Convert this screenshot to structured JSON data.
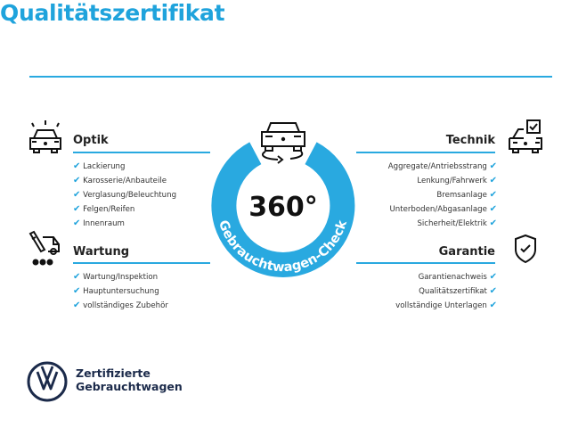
{
  "title": "Qualitätszertifikat",
  "accent_color": "#29a9e0",
  "badge": {
    "value": "360°",
    "ring_text": "Gebrauchtwagen-Check",
    "icon": "rotating-car-icon"
  },
  "sections": {
    "optik": {
      "heading": "Optik",
      "icon": "car-lights-icon",
      "items": [
        "Lackierung",
        "Karosserie/Anbauteile",
        "Verglasung/Beleuchtung",
        "Felgen/Reifen",
        "Innenraum"
      ]
    },
    "wartung": {
      "heading": "Wartung",
      "icon": "service-tools-icon",
      "items": [
        "Wartung/Inspektion",
        "Hauptuntersuchung",
        "vollständiges Zubehör"
      ]
    },
    "technik": {
      "heading": "Technik",
      "icon": "car-checkbox-icon",
      "items": [
        "Aggregate/Antriebsstrang",
        "Lenkung/Fahrwerk",
        "Bremsanlage",
        "Unterboden/Abgasanlage",
        "Sicherheit/Elektrik"
      ]
    },
    "garantie": {
      "heading": "Garantie",
      "icon": "shield-check-icon",
      "items": [
        "Garantienachweis",
        "Qualitätszertifikat",
        "vollständige Unterlagen"
      ]
    }
  },
  "check_mark": "✔",
  "brand": {
    "line1": "Zertifizierte",
    "line2": "Gebrauchtwagen",
    "logo": "vw-logo"
  }
}
